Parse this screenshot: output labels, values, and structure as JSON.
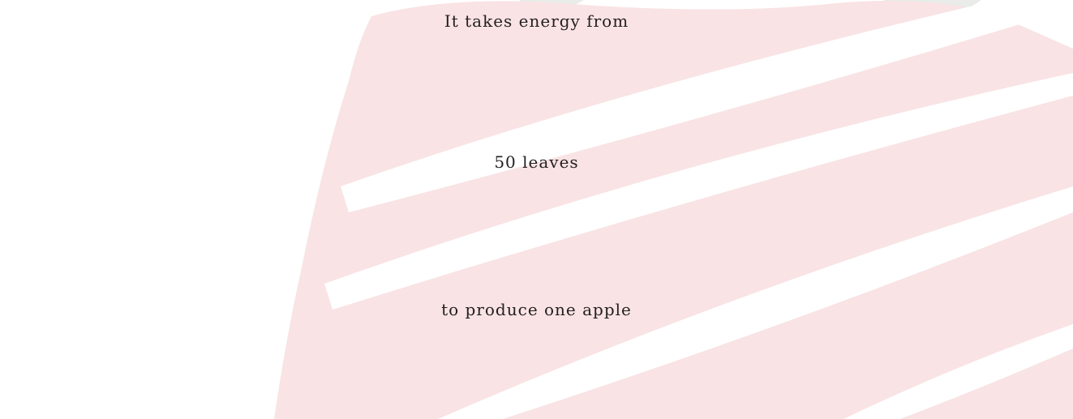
{
  "quote": {
    "line1": "It takes energy from",
    "line2": "50 leaves",
    "line3": "to produce one apple"
  },
  "colors": {
    "text": "#231f20",
    "background": "#ffffff",
    "apple_pink": "#f9e3e4",
    "leaf_gray": "#e9ece8"
  }
}
